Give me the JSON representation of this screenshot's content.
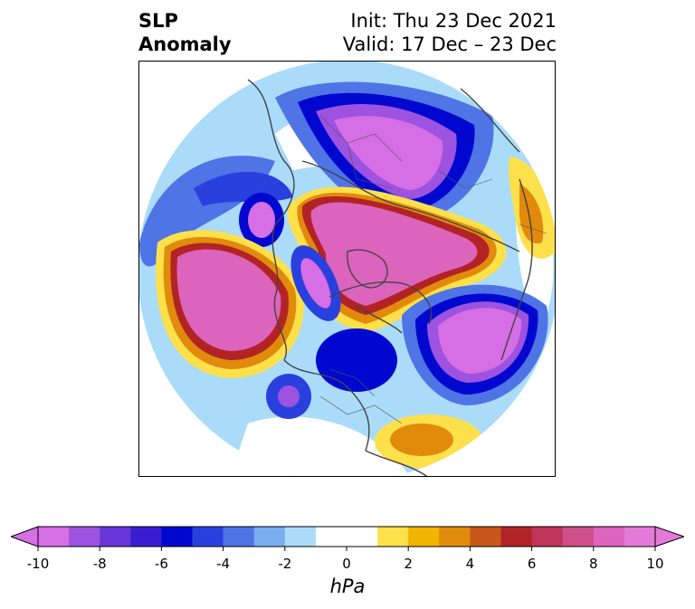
{
  "header": {
    "title_line1": "SLP",
    "title_line2": "Anomaly",
    "init": "Init: Thu 23 Dec 2021",
    "valid": "Valid: 17 Dec – 23 Dec"
  },
  "colorbar": {
    "units": "hPa",
    "ticks": [
      "-10",
      "-8",
      "-6",
      "-4",
      "-2",
      "0",
      "2",
      "4",
      "6",
      "8",
      "10"
    ],
    "colors": [
      "#d66ee6",
      "#9d52e0",
      "#6a35d8",
      "#3a1dd2",
      "#0008cf",
      "#2a40de",
      "#4e74e6",
      "#78adef",
      "#aadcfa",
      "#ffffff",
      "#ffffff",
      "#fde04a",
      "#f2b400",
      "#e18a0b",
      "#c8561a",
      "#b22325",
      "#bf3458",
      "#ce4f8a",
      "#dc64bc",
      "#e47ad8"
    ]
  },
  "map": {
    "projection": "north-polar-stereographic",
    "colors": {
      "neg_extreme": "#d66ee6",
      "neg_8": "#9d52e0",
      "neg_6": "#3a1dd2",
      "neg_5": "#0008cf",
      "neg_4": "#2a40de",
      "neg_3": "#4e74e6",
      "neg_2": "#78adef",
      "neg_1": "#aadcfa",
      "pos_1": "#fde04a",
      "pos_2": "#f2b400",
      "pos_3": "#e18a0b",
      "pos_4": "#c8561a",
      "pos_5": "#b22325",
      "pos_6": "#bf3458",
      "pos_8": "#ce4f8a",
      "pos_extreme": "#dc64bc",
      "coast": "#444444"
    }
  }
}
